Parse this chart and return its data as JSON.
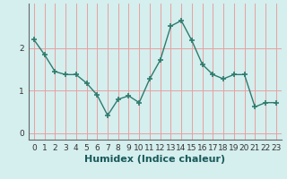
{
  "x": [
    0,
    1,
    2,
    3,
    4,
    5,
    6,
    7,
    8,
    9,
    10,
    11,
    12,
    13,
    14,
    15,
    16,
    17,
    18,
    19,
    20,
    21,
    22,
    23
  ],
  "y": [
    2.2,
    1.85,
    1.45,
    1.38,
    1.38,
    1.18,
    0.9,
    0.42,
    0.8,
    0.88,
    0.72,
    1.28,
    1.72,
    2.52,
    2.65,
    2.18,
    1.62,
    1.38,
    1.28,
    1.38,
    1.38,
    0.62,
    0.72,
    0.72
  ],
  "xlabel": "Humidex (Indice chaleur)",
  "xlim": [
    -0.5,
    23.5
  ],
  "ylim": [
    -0.15,
    3.05
  ],
  "yticks": [
    0,
    1,
    2
  ],
  "xticks": [
    0,
    1,
    2,
    3,
    4,
    5,
    6,
    7,
    8,
    9,
    10,
    11,
    12,
    13,
    14,
    15,
    16,
    17,
    18,
    19,
    20,
    21,
    22,
    23
  ],
  "line_color": "#2e7b6e",
  "marker_color": "#2e7b6e",
  "bg_color": "#d5eeee",
  "grid_color_v": "#e8a0a0",
  "grid_color_h": "#e8a0a0",
  "label_fontsize": 8,
  "tick_fontsize": 6.5
}
